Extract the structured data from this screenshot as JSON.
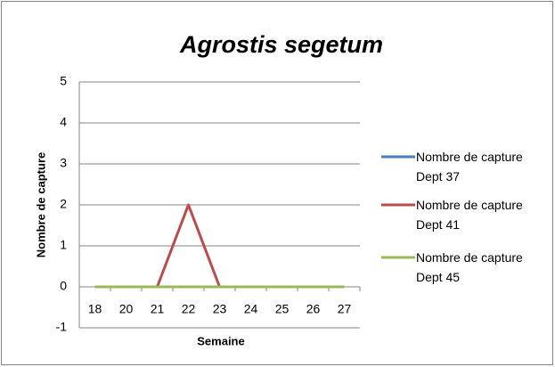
{
  "chart_data": {
    "type": "line",
    "title": "Agrostis segetum",
    "x_label": "Semaine",
    "y_label": "Nombre de capture",
    "categories": [
      "18",
      "20",
      "21",
      "22",
      "23",
      "24",
      "25",
      "26",
      "27"
    ],
    "series": [
      {
        "name": "Nombre de capture Dept 37",
        "color": "#4a7ebb",
        "values": [
          0,
          0,
          0,
          0,
          0,
          0,
          0,
          0,
          0
        ]
      },
      {
        "name": "Nombre de capture Dept 41",
        "color": "#be4b48",
        "values": [
          0,
          0,
          0,
          2,
          0,
          0,
          0,
          0,
          0
        ]
      },
      {
        "name": "Nombre de capture Dept 45",
        "color": "#98b954",
        "values": [
          0,
          0,
          0,
          0,
          0,
          0,
          0,
          0,
          0
        ]
      }
    ],
    "ylim": [
      -1,
      5
    ],
    "yticks": [
      -1,
      0,
      1,
      2,
      3,
      4,
      5
    ],
    "grid": true,
    "legend": "right"
  }
}
